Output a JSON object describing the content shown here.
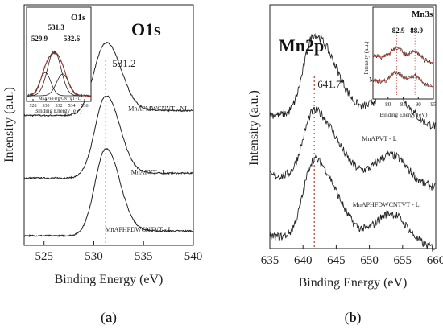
{
  "chart_data": [
    {
      "type": "line",
      "panel": "(a)",
      "title": "O1s",
      "xlabel": "Binding Energy (eV)",
      "ylabel": "Intensity (a.u.)",
      "xlim": [
        523,
        540
      ],
      "xticks": [
        525,
        530,
        535,
        540
      ],
      "grid": false,
      "reference_line": {
        "x": 531.2,
        "label": "531.2",
        "color": "#c0392b",
        "style": "dotted"
      },
      "series": [
        {
          "name": "MnAPMWCNVT - NL",
          "peak": 531.2,
          "baseline": 0.54,
          "height": 0.3,
          "width": 1.3
        },
        {
          "name": "MnAPVT - L",
          "peak": 531.2,
          "baseline": 0.28,
          "height": 0.34,
          "width": 1.2
        },
        {
          "name": "MnAPHFDWCNTVT - L",
          "peak": 531.2,
          "baseline": 0.04,
          "height": 0.36,
          "width": 1.2
        }
      ],
      "inset": {
        "title": "O1s",
        "xlabel": "Binding Energy (eV)",
        "xlim": [
          527,
          537
        ],
        "xticks": [
          528,
          530,
          532,
          534,
          536
        ],
        "sample_label": "MnAPHFDWCNTVT - L",
        "peaks": [
          {
            "label": "529.9",
            "center": 529.9,
            "height": 0.32,
            "width": 0.85
          },
          {
            "label": "531.3",
            "center": 531.3,
            "height": 0.62,
            "width": 1.05
          },
          {
            "label": "532.6",
            "center": 532.6,
            "height": 0.3,
            "width": 0.95
          }
        ]
      }
    },
    {
      "type": "line",
      "panel": "(b)",
      "title": "Mn2p",
      "xlabel": "Binding Energy (eV)",
      "ylabel": "Intensity (a.u.)",
      "xlim": [
        635,
        660
      ],
      "xticks": [
        635,
        640,
        645,
        650,
        655,
        660
      ],
      "grid": false,
      "reference_line": {
        "x": 641.7,
        "label": "641.7",
        "color": "#c0392b",
        "style": "dotted"
      },
      "series": [
        {
          "name": "MnAPMWCNVT - NL",
          "main_peak": 641.7,
          "satellite_peak": 653.3,
          "offset": 0.55,
          "main_height": 0.34,
          "sat_height": 0.14
        },
        {
          "name": "MnAPVT - L",
          "main_peak": 641.7,
          "satellite_peak": 653.3,
          "offset": 0.3,
          "main_height": 0.28,
          "sat_height": 0.12
        },
        {
          "name": "MnAPHFDWCNTVT - L",
          "main_peak": 641.7,
          "satellite_peak": 653.3,
          "offset": 0.05,
          "main_height": 0.33,
          "sat_height": 0.13
        }
      ],
      "inset": {
        "title": "Mn3s",
        "xlabel": "Binding Energy (eV)",
        "ylabel": "Intensity (a.u.)",
        "xlim": [
          75,
          95
        ],
        "xticks": [
          75,
          80,
          85,
          90,
          95
        ],
        "peak_labels": [
          "82.9",
          "88.9"
        ],
        "peaks": [
          82.9,
          88.9
        ]
      }
    }
  ]
}
